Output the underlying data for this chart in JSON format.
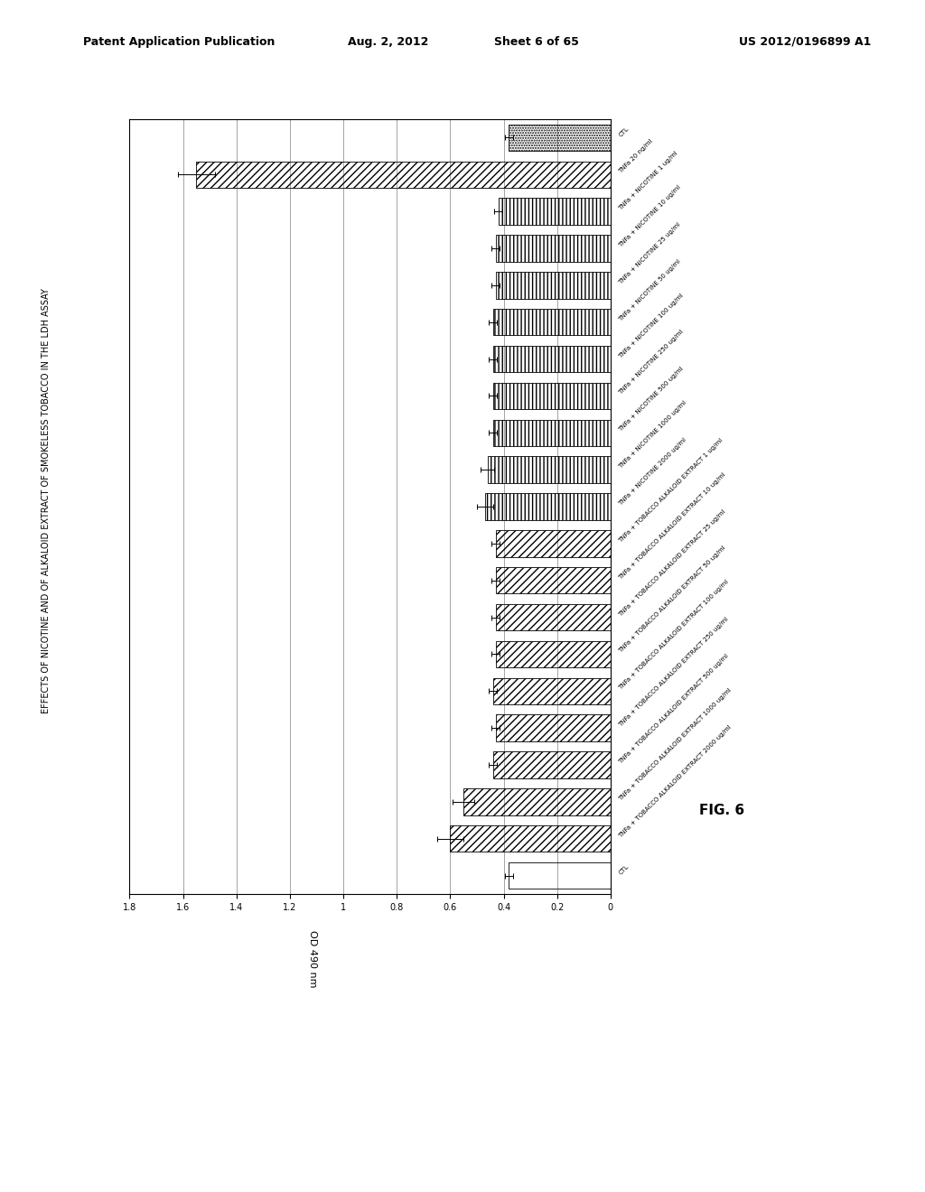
{
  "title": "EFFECTS OF NICOTINE AND OF ALKALOID EXTRACT OF SMOKELESS TOBACCO IN THE LDH ASSAY",
  "xlabel": "OD 490 nm",
  "patent_header": "Patent Application Publication",
  "patent_date": "Aug. 2, 2012",
  "patent_sheet": "Sheet 6 of 65",
  "patent_number": "US 2012/0196899 A1",
  "fig_label": "FIG. 6",
  "categories": [
    "CTL",
    "TNFa + TOBACCO ALKALOID EXTRACT 2000 ug/ml",
    "TNFa + TOBACCO ALKALOID EXTRACT 1000 ug/ml",
    "TNFa + TOBACCO ALKALOID EXTRACT 500 ug/ml",
    "TNFa + TOBACCO ALKALOID EXTRACT 250 ug/ml",
    "TNFa + TOBACCO ALKALOID EXTRACT 100 ug/ml",
    "TNFa + TOBACCO ALKALOID EXTRACT 50 ug/ml",
    "TNFa + TOBACCO ALKALOID EXTRACT 25 ug/ml",
    "TNFa + TOBACCO ALKALOID EXTRACT 10 ug/ml",
    "TNFa + TOBACCO ALKALOID EXTRACT 1 ug/ml",
    "TNFa + NICOTINE 2000 ug/ml",
    "TNFa + NICOTINE 1000 ug/ml",
    "TNFa + NICOTINE 500 ug/ml",
    "TNFa + NICOTINE 250 ug/ml",
    "TNFa + NICOTINE 100 ug/ml",
    "TNFa + NICOTINE 50 ug/ml",
    "TNFa + NICOTINE 25 ug/ml",
    "TNFa + NICOTINE 10 ug/ml",
    "TNFa + NICOTINE 1 ug/ml",
    "TNFa 20 ng/ml",
    "CTL"
  ],
  "values": [
    0.38,
    0.6,
    0.55,
    0.44,
    0.43,
    0.44,
    0.43,
    0.43,
    0.43,
    0.43,
    0.47,
    0.46,
    0.44,
    0.44,
    0.44,
    0.44,
    0.43,
    0.43,
    0.42,
    1.55,
    0.38
  ],
  "errors": [
    0.015,
    0.05,
    0.04,
    0.015,
    0.015,
    0.015,
    0.015,
    0.015,
    0.015,
    0.015,
    0.03,
    0.025,
    0.015,
    0.015,
    0.015,
    0.015,
    0.015,
    0.015,
    0.015,
    0.07,
    0.015
  ],
  "hatch_patterns": [
    "",
    "////",
    "////",
    "////",
    "////",
    "////",
    "////",
    "////",
    "////",
    "////",
    "||||",
    "||||",
    "||||",
    "||||",
    "||||",
    "||||",
    "||||",
    "||||",
    "||||",
    "////",
    "......"
  ],
  "bar_colors": [
    "white",
    "white",
    "white",
    "white",
    "white",
    "white",
    "white",
    "white",
    "white",
    "white",
    "white",
    "white",
    "white",
    "white",
    "white",
    "white",
    "white",
    "white",
    "white",
    "white",
    "white"
  ],
  "xlim_max": 1.8,
  "xticks": [
    1.8,
    1.6,
    1.4,
    1.2,
    1.0,
    0.8,
    0.6,
    0.4,
    0.2,
    0
  ],
  "xtick_labels": [
    "1.8",
    "1.6",
    "1.4",
    "1.2",
    "1",
    "0.8",
    "0.6",
    "0.4",
    "0.2",
    "0"
  ],
  "background_color": "white",
  "figure_bg": "white"
}
